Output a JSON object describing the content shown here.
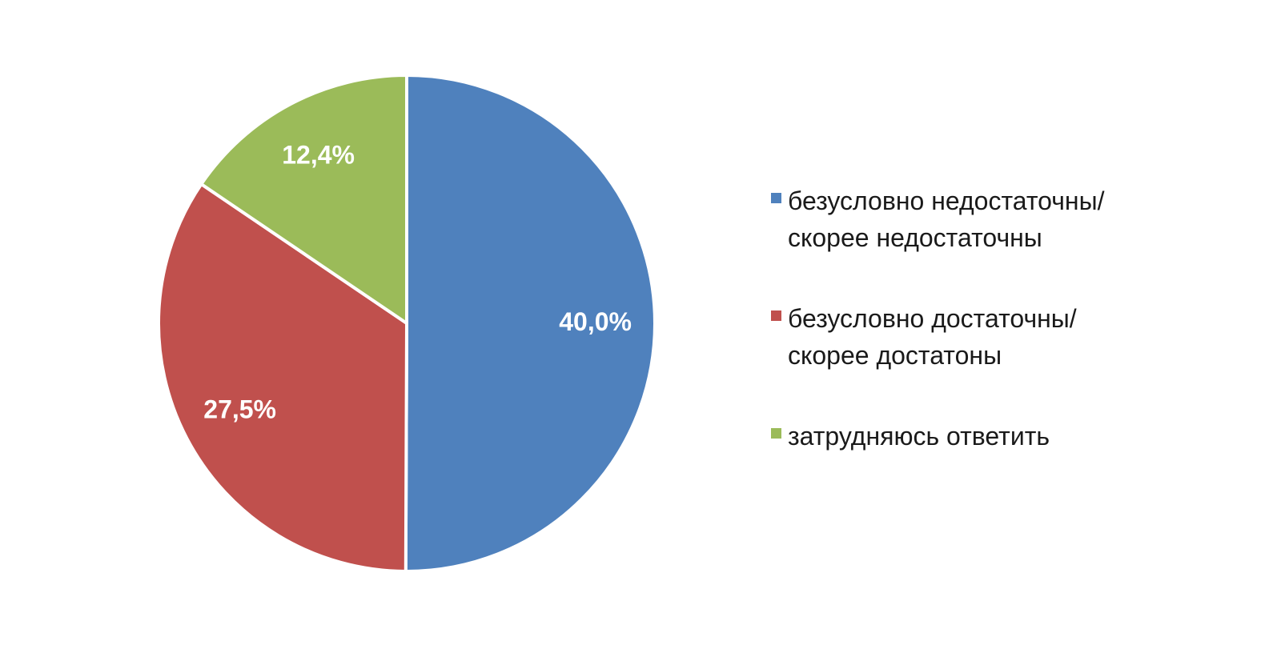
{
  "chart_data": {
    "type": "pie",
    "categories": [
      "безусловно недостаточны/\nскорее недостаточны",
      "безусловно достаточны/\nскорее достатоны",
      "затрудняюсь ответить"
    ],
    "values": [
      40.0,
      27.5,
      12.4
    ],
    "value_labels": [
      "40,0%",
      "27,5%",
      "12,4%"
    ],
    "colors": [
      "#4f81bd",
      "#c0504d",
      "#9bbb59"
    ],
    "legend": "right"
  }
}
